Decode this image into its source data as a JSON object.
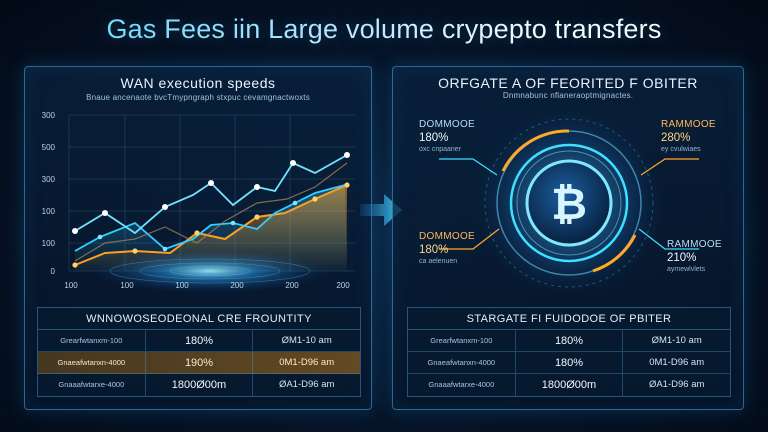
{
  "title": "Gas Fees iin Large volume crypepto transfers",
  "left": {
    "panel_title": "WAN execution speeds",
    "panel_sub": "Bnaue ancenaote bvcTmypngraph stxpuc cevamgnactwoxts",
    "y_ticks": [
      "300",
      "500",
      "300",
      "100",
      "100",
      "0"
    ],
    "x_ticks": [
      "100",
      "100",
      "100",
      "200",
      "200",
      "200"
    ],
    "table": {
      "header": "WNNOWOSEODEONAL CRE FROUNTITY",
      "rows": [
        [
          "Grearfwtanxm-100",
          "180%",
          "ØM1-10 am"
        ],
        [
          "Gnaeafwtanxn-4000",
          "190%",
          "0M1-D96 am"
        ],
        [
          "Gnaaafwtarxe-4000",
          "1800Ø00m",
          "ØA1-D96 am"
        ]
      ]
    }
  },
  "right": {
    "panel_title": "ORFGATE A OF FEORITED F OBITER",
    "panel_sub": "Dnmnabunc nflaneraoptmignactes.",
    "coin_symbol": "₿",
    "stats": {
      "top_left": {
        "label": "DOMMOOE",
        "value": "180%",
        "note": "oxc cnpaaner"
      },
      "top_right": {
        "label": "RAMMOOE",
        "value": "280%",
        "note": "ey cvulwiaes"
      },
      "bottom_left": {
        "label": "DOMMOOE",
        "value": "180%",
        "note": "ca aelenuen"
      },
      "bottom_right": {
        "label": "RAMMOOE",
        "value": "210%",
        "note": "aymewlvlets"
      }
    },
    "table": {
      "header": "STARGATE FI FUIDODOE OF PBITER",
      "rows": [
        [
          "Grearfwtanxm-100",
          "180%",
          "ØM1-10 am"
        ],
        [
          "Gnaeafwtanxn-4000",
          "180%",
          "0M1-D96 am"
        ],
        [
          "Gnaaafwtarxe-4000",
          "1800Ø00m",
          "ØA1-D96 am"
        ]
      ]
    }
  },
  "colors": {
    "accent_cyan": "#3ee0ff",
    "accent_orange": "#ffa928",
    "panel_border": "#50aae6"
  }
}
